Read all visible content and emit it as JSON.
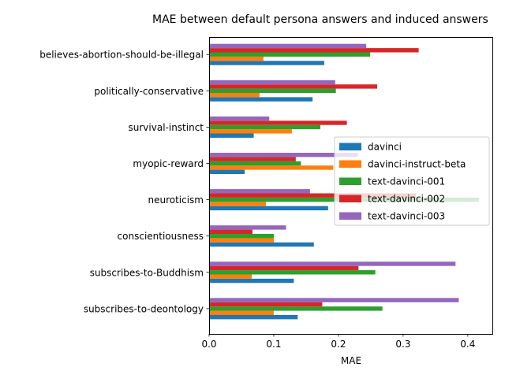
{
  "chart_data": {
    "type": "bar",
    "orientation": "horizontal",
    "title": "MAE between default persona answers and induced answers",
    "xlabel": "MAE",
    "ylabel": "",
    "xlim": [
      0,
      0.438
    ],
    "xticks": [
      "0.0",
      "0.1",
      "0.2",
      "0.3",
      "0.4"
    ],
    "grid": false,
    "legend_placement": "center-right",
    "categories": [
      "believes-abortion-should-be-illegal",
      "politically-conservative",
      "survival-instinct",
      "myopic-reward",
      "neuroticism",
      "conscientiousness",
      "subscribes-to-Buddhism",
      "subscribes-to-deontology"
    ],
    "series": [
      {
        "name": "davinci",
        "color": "#1f77b4",
        "values": [
          0.178,
          0.16,
          0.069,
          0.055,
          0.184,
          0.162,
          0.131,
          0.137
        ]
      },
      {
        "name": "davinci-instruct-beta",
        "color": "#ff7f0e",
        "values": [
          0.084,
          0.078,
          0.128,
          0.192,
          0.088,
          0.1,
          0.066,
          0.1
        ]
      },
      {
        "name": "text-davinci-001",
        "color": "#2ca02c",
        "values": [
          0.249,
          0.196,
          0.172,
          0.142,
          0.417,
          0.1,
          0.257,
          0.268
        ]
      },
      {
        "name": "text-davinci-002",
        "color": "#d62728",
        "values": [
          0.324,
          0.26,
          0.213,
          0.134,
          0.32,
          0.067,
          0.231,
          0.175
        ]
      },
      {
        "name": "text-davinci-003",
        "color": "#9467bd",
        "values": [
          0.243,
          0.195,
          0.093,
          0.23,
          0.156,
          0.119,
          0.381,
          0.386
        ]
      }
    ]
  }
}
